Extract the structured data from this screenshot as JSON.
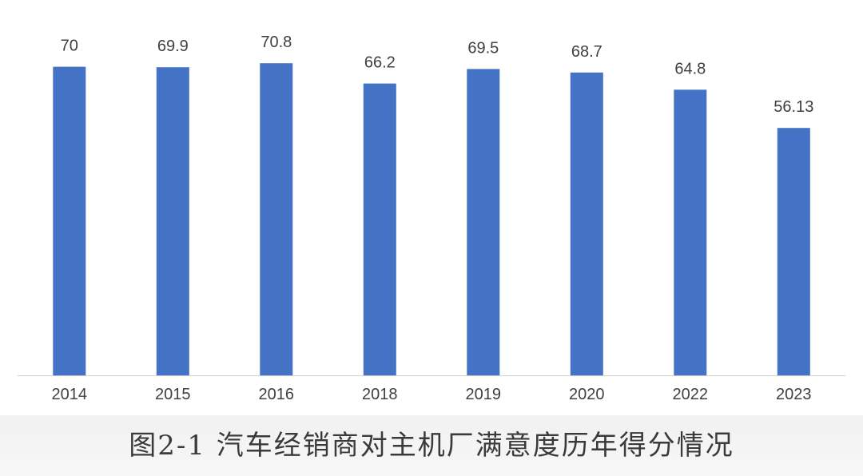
{
  "caption": "图2-1 汽车经销商对主机厂满意度历年得分情况",
  "chart_data": {
    "type": "bar",
    "categories": [
      "2014",
      "2015",
      "2016",
      "2018",
      "2019",
      "2020",
      "2022",
      "2023"
    ],
    "values": [
      70,
      69.9,
      70.8,
      66.2,
      69.5,
      68.7,
      64.8,
      56.13
    ],
    "data_labels": [
      "70",
      "69.9",
      "70.8",
      "66.2",
      "69.5",
      "68.7",
      "64.8",
      "56.13"
    ],
    "ylim": [
      0,
      78
    ],
    "grid": false,
    "legend": "none",
    "bar_color": "#4472c4",
    "axis_color": "#d0d0d0"
  }
}
